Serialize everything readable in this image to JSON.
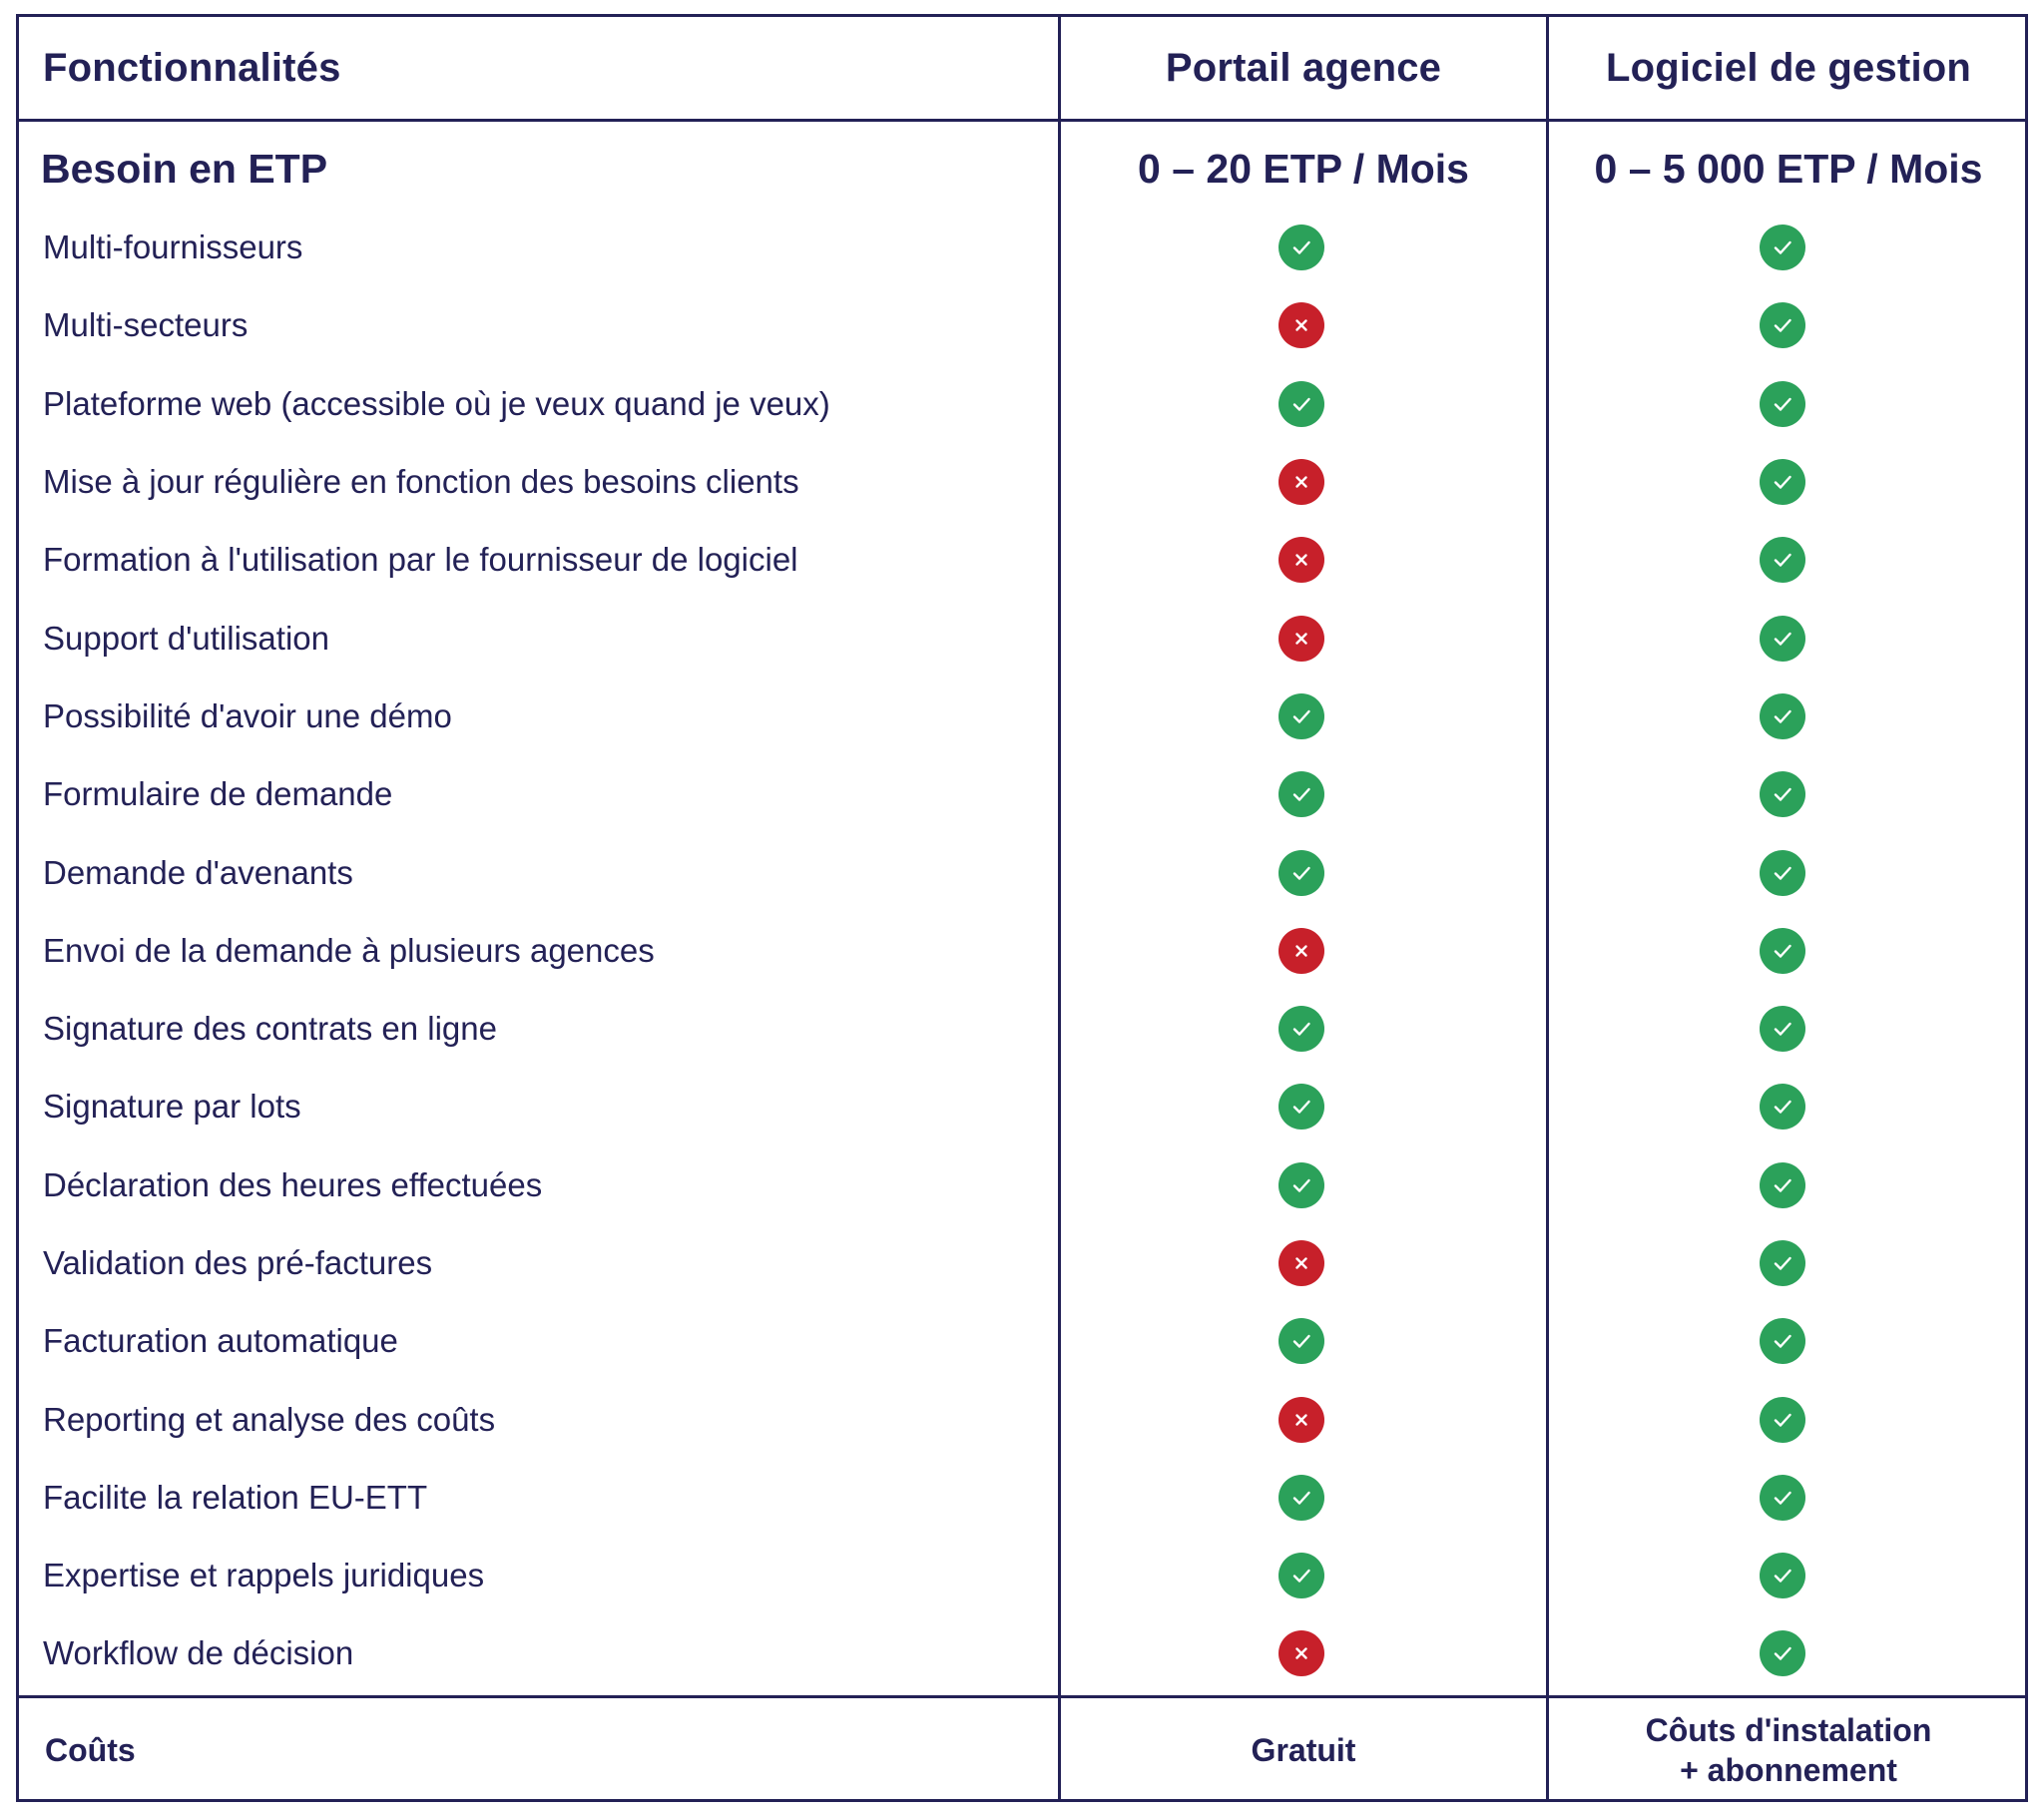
{
  "header": {
    "col1": "Fonctionnalités",
    "col2": "Portail agence",
    "col3": "Logiciel de gestion"
  },
  "etp": {
    "label": "Besoin en ETP",
    "portail": "0 – 20 ETP / Mois",
    "logiciel": "0 – 5 000 ETP / Mois"
  },
  "colors": {
    "border": "#232156",
    "text": "#232156",
    "check": "#2ba15a",
    "cross": "#c7202a"
  },
  "rows": [
    {
      "label": "Multi-fournisseurs",
      "portail": "check",
      "logiciel": "check"
    },
    {
      "label": "Multi-secteurs",
      "portail": "cross",
      "logiciel": "check"
    },
    {
      "label": "Plateforme web (accessible où je veux quand je veux)",
      "portail": "check",
      "logiciel": "check"
    },
    {
      "label": "Mise à jour régulière en fonction des besoins clients",
      "portail": "cross",
      "logiciel": "check"
    },
    {
      "label": "Formation à l'utilisation par le fournisseur de logiciel",
      "portail": "cross",
      "logiciel": "check"
    },
    {
      "label": "Support d'utilisation",
      "portail": "cross",
      "logiciel": "check"
    },
    {
      "label": "Possibilité d'avoir une démo",
      "portail": "check",
      "logiciel": "check"
    },
    {
      "label": "Formulaire de demande",
      "portail": "check",
      "logiciel": "check"
    },
    {
      "label": "Demande d'avenants",
      "portail": "check",
      "logiciel": "check"
    },
    {
      "label": "Envoi de la demande à plusieurs agences",
      "portail": "cross",
      "logiciel": "check"
    },
    {
      "label": "Signature des contrats en ligne",
      "portail": "check",
      "logiciel": "check"
    },
    {
      "label": "Signature par lots",
      "portail": "check",
      "logiciel": "check"
    },
    {
      "label": "Déclaration des heures effectuées",
      "portail": "check",
      "logiciel": "check"
    },
    {
      "label": "Validation des pré-factures",
      "portail": "cross",
      "logiciel": "check"
    },
    {
      "label": "Facturation automatique",
      "portail": "check",
      "logiciel": "check"
    },
    {
      "label": "Reporting et analyse des coûts",
      "portail": "cross",
      "logiciel": "check"
    },
    {
      "label": "Facilite la relation EU-ETT",
      "portail": "check",
      "logiciel": "check"
    },
    {
      "label": "Expertise et rappels juridiques",
      "portail": "check",
      "logiciel": "check"
    },
    {
      "label": "Workflow de décision",
      "portail": "cross",
      "logiciel": "check"
    }
  ],
  "costs": {
    "label": "Coûts",
    "portail": "Gratuit",
    "logiciel_line1": "Côuts d'instalation",
    "logiciel_line2": "+ abonnement"
  }
}
